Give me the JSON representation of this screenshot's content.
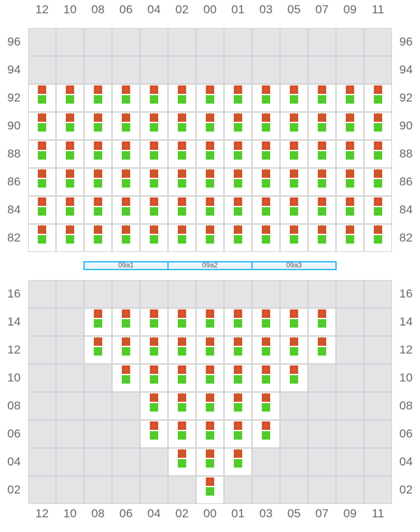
{
  "columns": [
    "12",
    "10",
    "08",
    "06",
    "04",
    "02",
    "00",
    "01",
    "03",
    "05",
    "07",
    "09",
    "11"
  ],
  "colors": {
    "top": "#d4532b",
    "bottom": "#52cc2b",
    "blocked": "#e4e4e7",
    "border": "#d4d4d8",
    "bar": "#38bdf8"
  },
  "upper": {
    "rows": [
      {
        "label": "96",
        "open": []
      },
      {
        "label": "94",
        "open": []
      },
      {
        "label": "92",
        "open": "all"
      },
      {
        "label": "90",
        "open": "all"
      },
      {
        "label": "88",
        "open": "all"
      },
      {
        "label": "86",
        "open": "all"
      },
      {
        "label": "84",
        "open": "all"
      },
      {
        "label": "82",
        "open": "all"
      }
    ]
  },
  "sections": [
    "09a1",
    "09a2",
    "09a3"
  ],
  "lower": {
    "rows": [
      {
        "label": "16",
        "open": []
      },
      {
        "label": "14",
        "open": [
          "08",
          "06",
          "04",
          "02",
          "00",
          "01",
          "03",
          "05",
          "07"
        ]
      },
      {
        "label": "12",
        "open": [
          "08",
          "06",
          "04",
          "02",
          "00",
          "01",
          "03",
          "05",
          "07"
        ]
      },
      {
        "label": "10",
        "open": [
          "06",
          "04",
          "02",
          "00",
          "01",
          "03",
          "05"
        ]
      },
      {
        "label": "08",
        "open": [
          "04",
          "02",
          "00",
          "01",
          "03"
        ]
      },
      {
        "label": "06",
        "open": [
          "04",
          "02",
          "00",
          "01",
          "03"
        ]
      },
      {
        "label": "04",
        "open": [
          "02",
          "00",
          "01"
        ]
      },
      {
        "label": "02",
        "open": [
          "00"
        ]
      }
    ]
  }
}
